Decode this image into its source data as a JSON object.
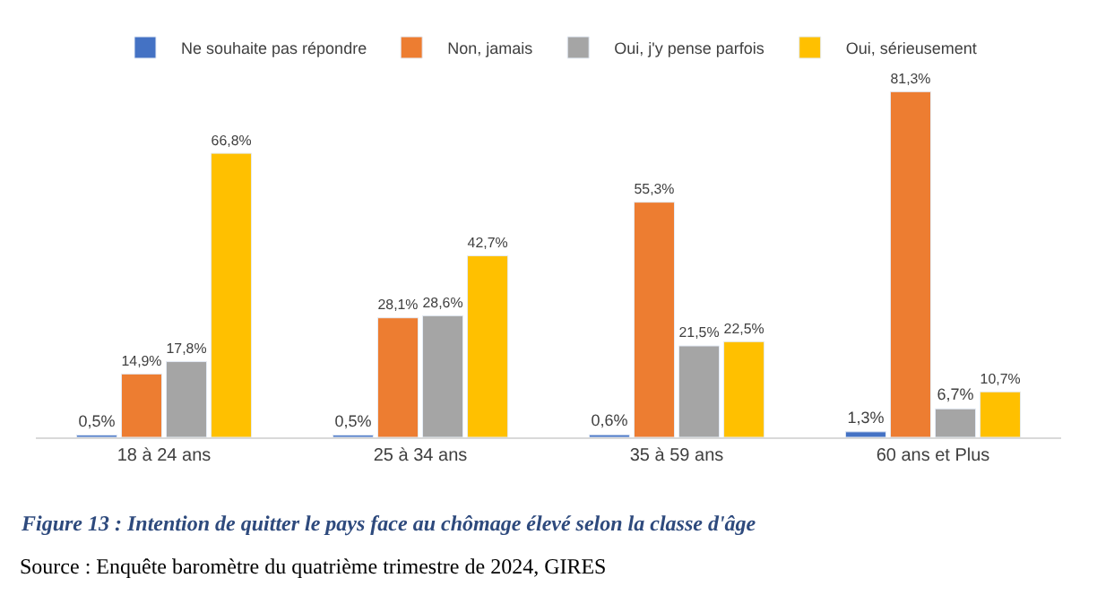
{
  "chart_data": {
    "type": "bar",
    "categories": [
      "18 à 24 ans",
      "25 à 34 ans",
      "35 à 59 ans",
      "60 ans et Plus"
    ],
    "series": [
      {
        "name": "Ne souhaite pas répondre",
        "color": "#4472c4",
        "values": [
          0.5,
          0.5,
          0.6,
          1.3
        ],
        "value_labels": [
          "0,5%",
          "0,5%",
          "0,6%",
          "1,3%"
        ]
      },
      {
        "name": "Non, jamais",
        "color": "#ed7d31",
        "values": [
          14.9,
          28.1,
          55.3,
          81.3
        ],
        "value_labels": [
          "14,9%",
          "28,1%",
          "55,3%",
          "81,3%"
        ]
      },
      {
        "name": "Oui, j'y pense parfois",
        "color": "#a5a5a5",
        "values": [
          17.8,
          28.6,
          21.5,
          6.7
        ],
        "value_labels": [
          "17,8%",
          "28,6%",
          "21,5%",
          "6,7%"
        ]
      },
      {
        "name": "Oui, sérieusement",
        "color": "#ffc000",
        "values": [
          66.8,
          42.7,
          22.5,
          10.7
        ],
        "value_labels": [
          "66,8%",
          "42,7%",
          "22,5%",
          "10,7%"
        ]
      }
    ],
    "legend": "top",
    "tick_labels": "x",
    "annotations": [
      "Figure 13 : Intention de quitter le pays face au chômage élevé selon la classe d'âge",
      "Source : Enquête baromètre du quatrième trimestre de 2024, GIRES"
    ]
  }
}
